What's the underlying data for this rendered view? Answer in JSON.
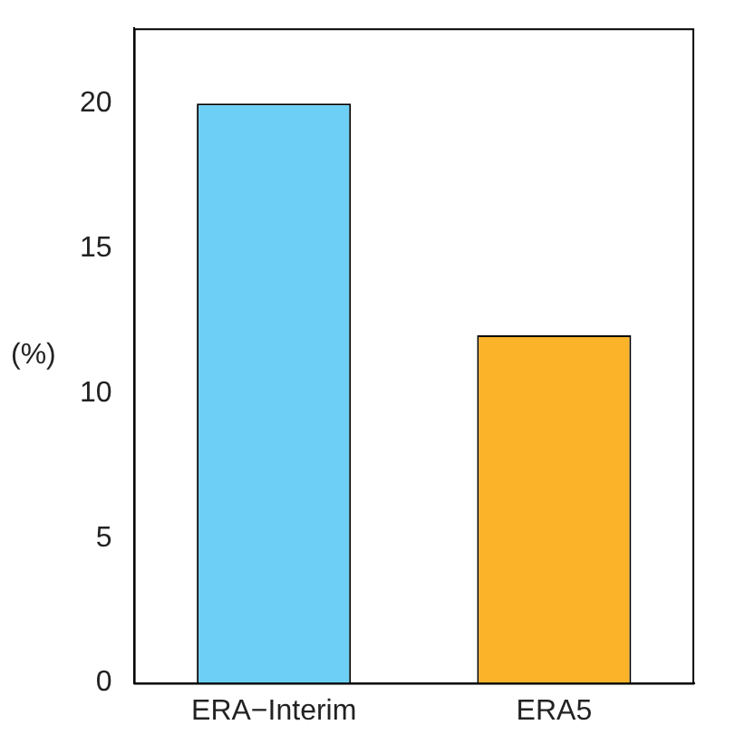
{
  "chart_data": {
    "type": "bar",
    "ylabel": "(%)",
    "categories": [
      "ERA−Interim",
      "ERA5"
    ],
    "values": [
      20,
      12
    ],
    "colors": [
      "#6dcff6",
      "#fbb42a"
    ],
    "ylim": [
      0,
      22.6
    ],
    "yticks": [
      0,
      5,
      10,
      15,
      20
    ],
    "grid": false,
    "legend": false
  }
}
